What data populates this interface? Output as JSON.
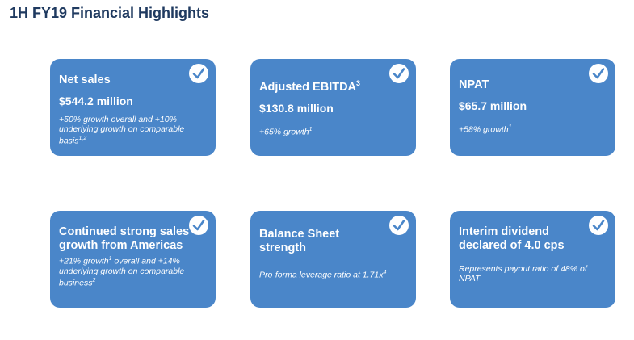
{
  "page": {
    "title": "1H FY19 Financial Highlights"
  },
  "cards": [
    {
      "title": "Net sales",
      "title_sup": "",
      "value": "$544.2 million",
      "note": "+50% growth overall and +10% underlying growth on comparable basis",
      "note_sup": "1,2"
    },
    {
      "title": "Adjusted EBITDA",
      "title_sup": "3",
      "value": "$130.8 million",
      "note": "+65% growth",
      "note_sup": "1"
    },
    {
      "title": "NPAT",
      "title_sup": "",
      "value": "$65.7 million",
      "note": "+58% growth",
      "note_sup": "1"
    },
    {
      "title": "Continued strong sales growth from Americas",
      "title_sup": "",
      "value": "",
      "note_a": "+21% growth",
      "note_a_sup": "1",
      "note_b": " overall and +14% underlying growth on comparable business",
      "note_b_sup": "2"
    },
    {
      "title": "Balance Sheet strength",
      "title_sup": "",
      "value": "",
      "note": "Pro-forma leverage ratio at 1.71x",
      "note_sup": "4"
    },
    {
      "title": "Interim dividend declared of 4.0 cps",
      "title_sup": "",
      "value": "",
      "note": "Represents payout ratio of 48% of NPAT",
      "note_sup": ""
    }
  ],
  "icons": {
    "check": "checkmark-icon"
  },
  "colors": {
    "card_bg": "#4a86c9",
    "title": "#1f3a60",
    "check_stroke": "#4a86c9"
  }
}
